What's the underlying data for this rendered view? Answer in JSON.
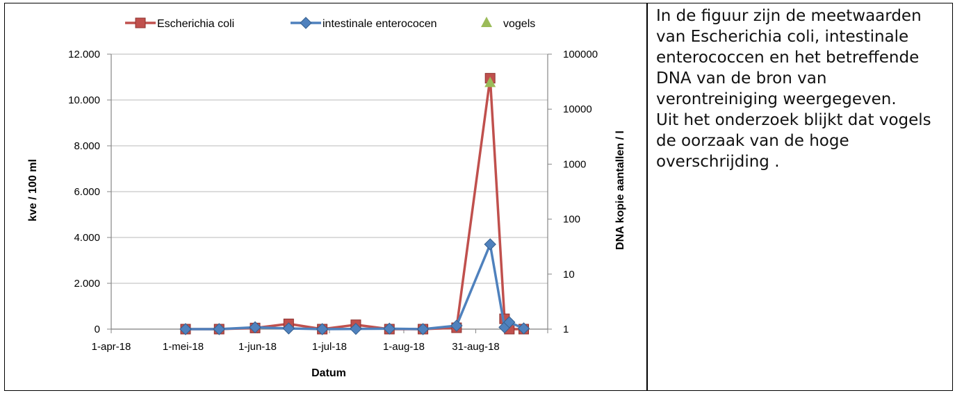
{
  "note": {
    "paragraph1": "In de figuur zijn de meetwaarden van Escherichia coli, intestinale enterococcen en het betreffende DNA van de bron van verontreiniging weergegeven.",
    "paragraph2": "Uit het onderzoek blijkt dat vogels de oorzaak van de hoge overschrijding ."
  },
  "colors": {
    "ecoli": "#c0504d",
    "entero": "#4f81bd",
    "vogels": "#9bbb59",
    "grid": "#c8c8c8",
    "axis": "#868686"
  },
  "chart_data": {
    "type": "line",
    "title": "",
    "xlabel": "Datum",
    "ylabel_left": "kve / 100 ml",
    "ylabel_right": "DNA kopie aantallen / l",
    "x_ticks": [
      "1-apr-18",
      "1-mei-18",
      "1-jun-18",
      "1-jul-18",
      "1-aug-18",
      "31-aug-18"
    ],
    "x_range": [
      "2018-04-01",
      "2018-09-30"
    ],
    "y_left_ticks": [
      "0",
      "2.000",
      "4.000",
      "6.000",
      "8.000",
      "10.000",
      "12.000"
    ],
    "y_left_ticks_values": [
      0,
      2000,
      4000,
      6000,
      8000,
      10000,
      12000
    ],
    "ylim_left": [
      0,
      12000
    ],
    "y_right_ticks": [
      "1",
      "10",
      "100",
      "1000",
      "10000",
      "100000"
    ],
    "y_right_ticks_values": [
      1,
      10,
      100,
      1000,
      10000,
      100000
    ],
    "ylim_right": [
      1,
      100000
    ],
    "y_right_scale": "log",
    "legend_position": "top",
    "grid": true,
    "series": [
      {
        "name": "Escherichia coli",
        "axis": "left",
        "marker": "square",
        "points": [
          {
            "x": "2018-05-02",
            "y": 0
          },
          {
            "x": "2018-05-16",
            "y": 0
          },
          {
            "x": "2018-05-31",
            "y": 50
          },
          {
            "x": "2018-06-14",
            "y": 230
          },
          {
            "x": "2018-06-28",
            "y": 0
          },
          {
            "x": "2018-07-12",
            "y": 190
          },
          {
            "x": "2018-07-26",
            "y": 0
          },
          {
            "x": "2018-08-09",
            "y": 0
          },
          {
            "x": "2018-08-23",
            "y": 60
          },
          {
            "x": "2018-09-06",
            "y": 10950
          },
          {
            "x": "2018-09-12",
            "y": 450
          },
          {
            "x": "2018-09-14",
            "y": 0
          },
          {
            "x": "2018-09-20",
            "y": 0
          }
        ]
      },
      {
        "name": "intestinale enterococen",
        "axis": "left",
        "marker": "diamond",
        "points": [
          {
            "x": "2018-05-02",
            "y": 0
          },
          {
            "x": "2018-05-16",
            "y": 0
          },
          {
            "x": "2018-05-31",
            "y": 80
          },
          {
            "x": "2018-06-14",
            "y": 30
          },
          {
            "x": "2018-06-28",
            "y": 0
          },
          {
            "x": "2018-07-12",
            "y": 10
          },
          {
            "x": "2018-07-26",
            "y": 20
          },
          {
            "x": "2018-08-09",
            "y": 0
          },
          {
            "x": "2018-08-23",
            "y": 150
          },
          {
            "x": "2018-09-06",
            "y": 3700
          },
          {
            "x": "2018-09-12",
            "y": 80
          },
          {
            "x": "2018-09-14",
            "y": 300
          },
          {
            "x": "2018-09-20",
            "y": 30
          }
        ]
      },
      {
        "name": "vogels",
        "axis": "right",
        "marker": "triangle",
        "points": [
          {
            "x": "2018-09-06",
            "y": 30000
          }
        ]
      }
    ]
  }
}
